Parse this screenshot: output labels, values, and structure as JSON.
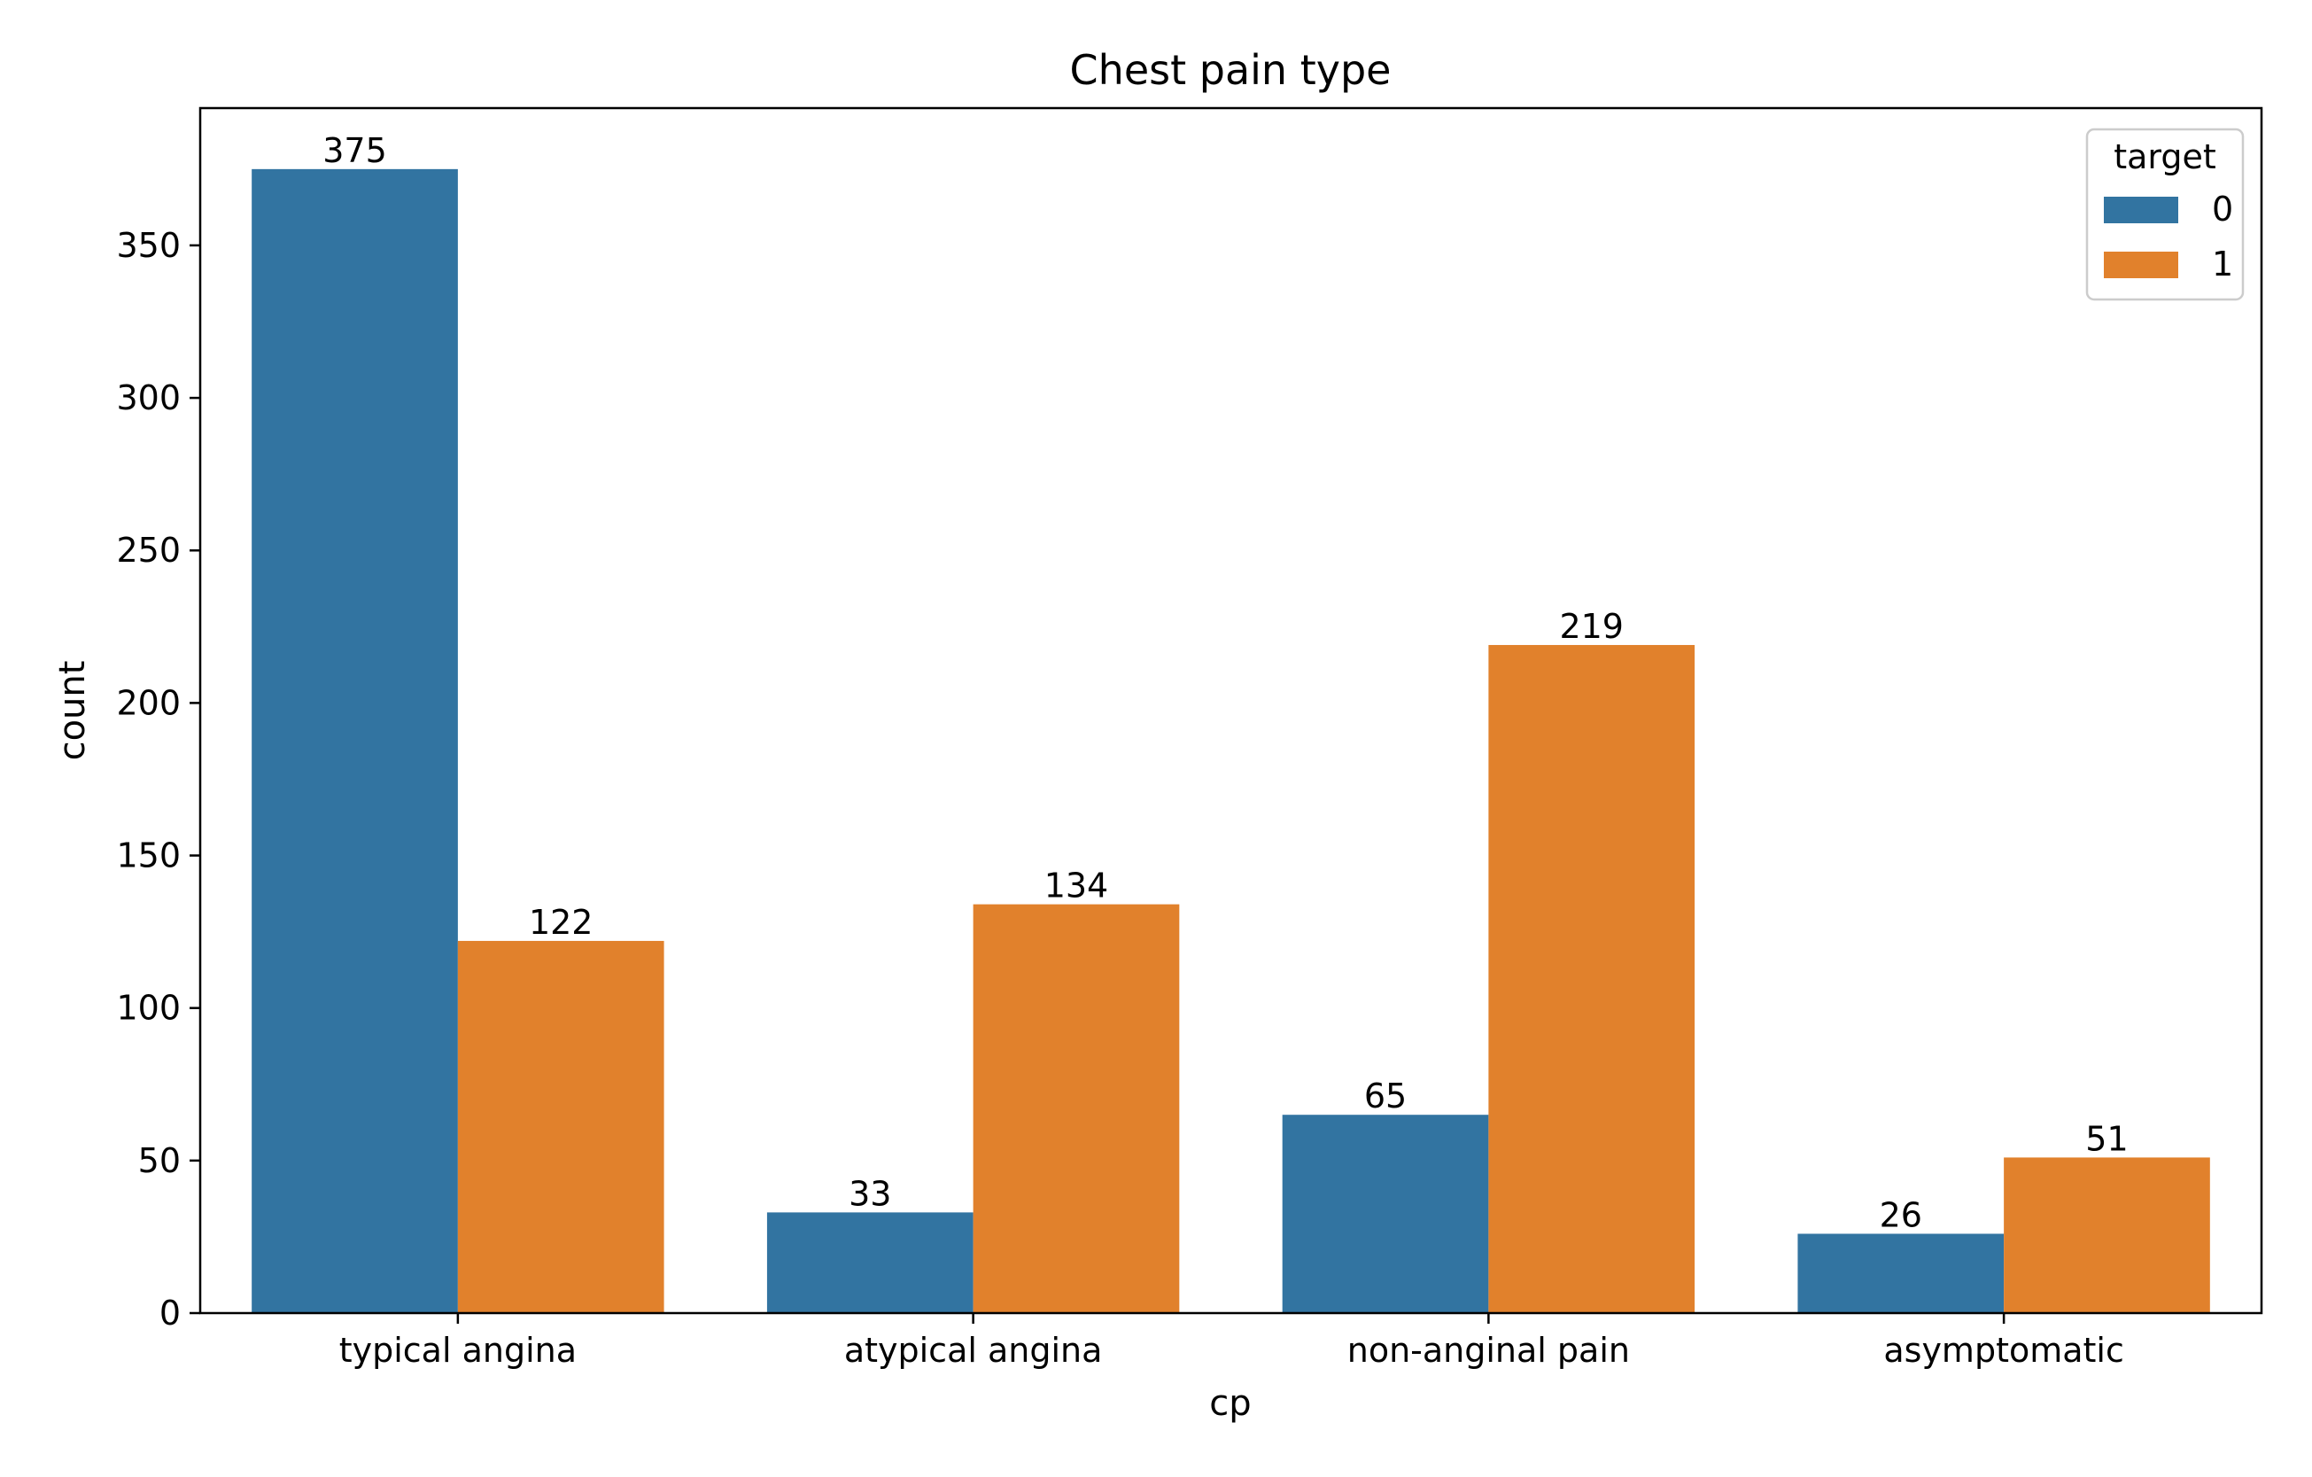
{
  "chart_data": {
    "type": "bar",
    "title": "Chest pain type",
    "xlabel": "cp",
    "ylabel": "count",
    "categories": [
      "typical angina",
      "atypical angina",
      "non-anginal pain",
      "asymptomatic"
    ],
    "ylim": [
      0,
      395
    ],
    "yticks": [
      0,
      50,
      100,
      150,
      200,
      250,
      300,
      350
    ],
    "grid": false,
    "legend": {
      "title": "target",
      "placement": "top-right"
    },
    "series": [
      {
        "name": "0",
        "color": "#3274a1",
        "values": [
          375,
          33,
          65,
          26
        ]
      },
      {
        "name": "1",
        "color": "#e1812c",
        "values": [
          122,
          134,
          219,
          51
        ]
      }
    ]
  }
}
